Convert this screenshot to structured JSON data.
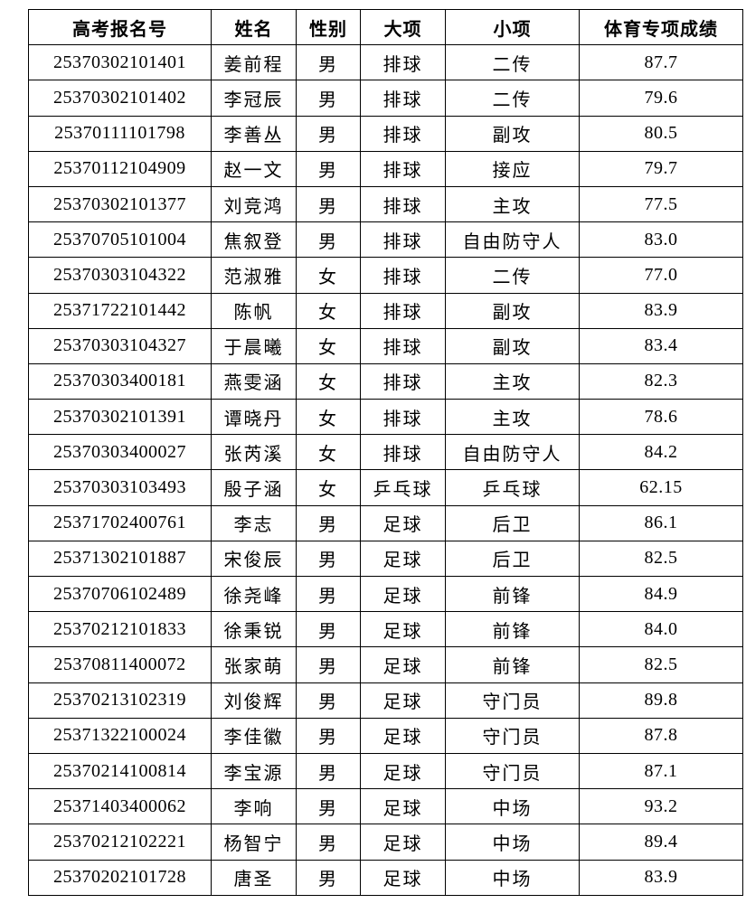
{
  "table": {
    "headers": [
      "高考报名号",
      "姓名",
      "性别",
      "大项",
      "小项",
      "体育专项成绩"
    ],
    "rows": [
      [
        "25370302101401",
        "姜前程",
        "男",
        "排球",
        "二传",
        "87.7"
      ],
      [
        "25370302101402",
        "李冠辰",
        "男",
        "排球",
        "二传",
        "79.6"
      ],
      [
        "25370111101798",
        "李善丛",
        "男",
        "排球",
        "副攻",
        "80.5"
      ],
      [
        "25370112104909",
        "赵一文",
        "男",
        "排球",
        "接应",
        "79.7"
      ],
      [
        "25370302101377",
        "刘竞鸿",
        "男",
        "排球",
        "主攻",
        "77.5"
      ],
      [
        "25370705101004",
        "焦叙登",
        "男",
        "排球",
        "自由防守人",
        "83.0"
      ],
      [
        "25370303104322",
        "范淑雅",
        "女",
        "排球",
        "二传",
        "77.0"
      ],
      [
        "25371722101442",
        "陈帆",
        "女",
        "排球",
        "副攻",
        "83.9"
      ],
      [
        "25370303104327",
        "于晨曦",
        "女",
        "排球",
        "副攻",
        "83.4"
      ],
      [
        "25370303400181",
        "燕雯涵",
        "女",
        "排球",
        "主攻",
        "82.3"
      ],
      [
        "25370302101391",
        "谭晓丹",
        "女",
        "排球",
        "主攻",
        "78.6"
      ],
      [
        "25370303400027",
        "张芮溪",
        "女",
        "排球",
        "自由防守人",
        "84.2"
      ],
      [
        "25370303103493",
        "殷子涵",
        "女",
        "乒乓球",
        "乒乓球",
        "62.15"
      ],
      [
        "25371702400761",
        "李志",
        "男",
        "足球",
        "后卫",
        "86.1"
      ],
      [
        "25371302101887",
        "宋俊辰",
        "男",
        "足球",
        "后卫",
        "82.5"
      ],
      [
        "25370706102489",
        "徐尧峰",
        "男",
        "足球",
        "前锋",
        "84.9"
      ],
      [
        "25370212101833",
        "徐秉锐",
        "男",
        "足球",
        "前锋",
        "84.0"
      ],
      [
        "25370811400072",
        "张家萌",
        "男",
        "足球",
        "前锋",
        "82.5"
      ],
      [
        "25370213102319",
        "刘俊辉",
        "男",
        "足球",
        "守门员",
        "89.8"
      ],
      [
        "25371322100024",
        "李佳徽",
        "男",
        "足球",
        "守门员",
        "87.8"
      ],
      [
        "25370214100814",
        "李宝源",
        "男",
        "足球",
        "守门员",
        "87.1"
      ],
      [
        "25371403400062",
        "李响",
        "男",
        "足球",
        "中场",
        "93.2"
      ],
      [
        "25370212102221",
        "杨智宁",
        "男",
        "足球",
        "中场",
        "89.4"
      ],
      [
        "25370202101728",
        "唐圣",
        "男",
        "足球",
        "中场",
        "83.9"
      ]
    ]
  }
}
